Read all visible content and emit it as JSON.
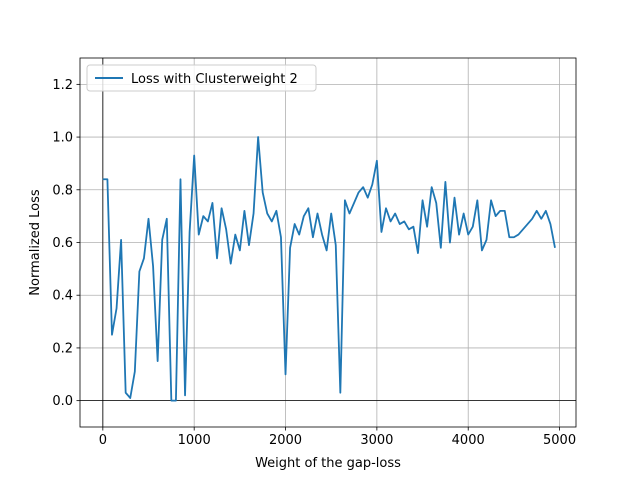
{
  "chart_data": {
    "type": "line",
    "title": "",
    "xlabel": "Weight of the gap-loss",
    "ylabel": "Normalized Loss",
    "xlim": [
      -250,
      5180
    ],
    "ylim": [
      -0.1,
      1.3
    ],
    "xticks": [
      0,
      1000,
      2000,
      3000,
      4000,
      5000
    ],
    "yticks": [
      0.0,
      0.2,
      0.4,
      0.6,
      0.8,
      1.0,
      1.2
    ],
    "xtick_labels": [
      "0",
      "1000",
      "2000",
      "3000",
      "4000",
      "5000"
    ],
    "ytick_labels": [
      "0.0",
      "0.2",
      "0.4",
      "0.6",
      "0.8",
      "1.0",
      "1.2"
    ],
    "grid": true,
    "zero_lines": true,
    "legend_position": "upper-left",
    "colors": {
      "series": "#1f77b4"
    },
    "series": [
      {
        "name": "Loss with Clusterweight 2",
        "x": [
          0,
          50,
          100,
          150,
          200,
          250,
          300,
          350,
          400,
          450,
          500,
          550,
          600,
          650,
          700,
          750,
          800,
          850,
          900,
          950,
          1000,
          1050,
          1100,
          1150,
          1200,
          1250,
          1300,
          1350,
          1400,
          1450,
          1500,
          1550,
          1600,
          1650,
          1700,
          1750,
          1800,
          1850,
          1900,
          1950,
          2000,
          2050,
          2100,
          2150,
          2200,
          2250,
          2300,
          2350,
          2400,
          2450,
          2500,
          2550,
          2600,
          2650,
          2700,
          2750,
          2800,
          2850,
          2900,
          2950,
          3000,
          3050,
          3100,
          3150,
          3200,
          3250,
          3300,
          3350,
          3400,
          3450,
          3500,
          3550,
          3600,
          3650,
          3700,
          3750,
          3800,
          3850,
          3900,
          3950,
          4000,
          4050,
          4100,
          4150,
          4200,
          4250,
          4300,
          4350,
          4400,
          4450,
          4500,
          4550,
          4600,
          4650,
          4700,
          4750,
          4800,
          4850,
          4900,
          4950
        ],
        "y": [
          0.84,
          0.84,
          0.25,
          0.35,
          0.61,
          0.03,
          0.01,
          0.11,
          0.49,
          0.54,
          0.69,
          0.51,
          0.15,
          0.61,
          0.69,
          0.0,
          0.0,
          0.84,
          0.02,
          0.64,
          0.93,
          0.63,
          0.7,
          0.68,
          0.75,
          0.54,
          0.73,
          0.65,
          0.52,
          0.63,
          0.57,
          0.72,
          0.59,
          0.71,
          1.0,
          0.79,
          0.71,
          0.68,
          0.72,
          0.62,
          0.1,
          0.58,
          0.67,
          0.63,
          0.7,
          0.73,
          0.62,
          0.71,
          0.63,
          0.57,
          0.71,
          0.59,
          0.03,
          0.76,
          0.71,
          0.75,
          0.79,
          0.81,
          0.77,
          0.82,
          0.91,
          0.64,
          0.73,
          0.68,
          0.71,
          0.67,
          0.68,
          0.65,
          0.66,
          0.56,
          0.76,
          0.66,
          0.81,
          0.75,
          0.58,
          0.83,
          0.6,
          0.77,
          0.63,
          0.71,
          0.63,
          0.66,
          0.76,
          0.57,
          0.61,
          0.76,
          0.7,
          0.72,
          0.72,
          0.62,
          0.62,
          0.63,
          0.65,
          0.67,
          0.69,
          0.72,
          0.69,
          0.72,
          0.67,
          0.58
        ]
      }
    ]
  }
}
